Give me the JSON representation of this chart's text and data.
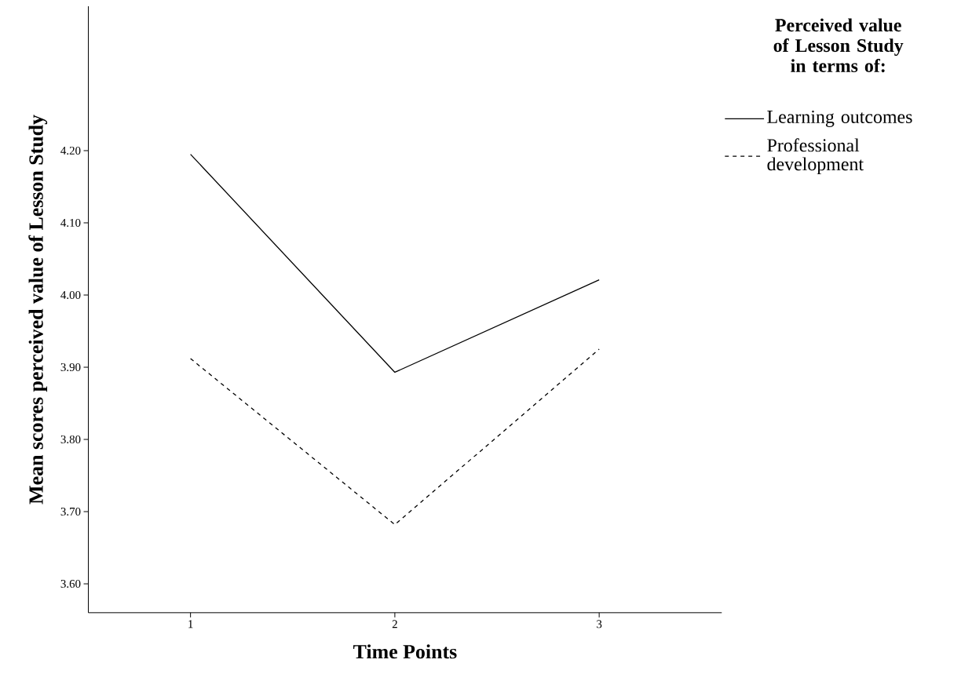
{
  "chart_data": {
    "type": "line",
    "xlabel": "Time Points",
    "ylabel": "Mean scores perceived value of Lesson Study",
    "legend_title": "Perceived value of Lesson Study in terms of:",
    "x": [
      1,
      2,
      3
    ],
    "series": [
      {
        "name": "Learning outcomes",
        "color": "#000000",
        "line_style": "solid",
        "values": [
          4.195,
          3.893,
          4.021
        ]
      },
      {
        "name": "Professional development",
        "color": "#000000",
        "line_style": "dashed",
        "values": [
          3.912,
          3.682,
          3.925
        ]
      }
    ],
    "xlim": [
      0.5,
      3.6
    ],
    "ylim": [
      3.56,
      4.4
    ],
    "xticks": [
      1,
      2,
      3
    ],
    "yticks": [
      {
        "value": 3.6,
        "label": "3.60"
      },
      {
        "value": 3.7,
        "label": "3.70"
      },
      {
        "value": 3.8,
        "label": "3.80"
      },
      {
        "value": 3.9,
        "label": "3.90"
      },
      {
        "value": 4.0,
        "label": "4.00"
      },
      {
        "value": 4.1,
        "label": "4.10"
      },
      {
        "value": 4.2,
        "label": "4.20"
      }
    ],
    "legend": "top right",
    "grid": false
  }
}
